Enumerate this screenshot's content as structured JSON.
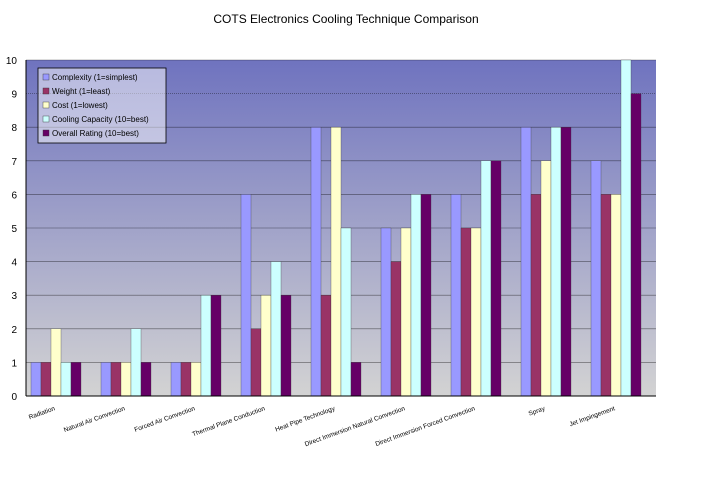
{
  "chart_data": {
    "type": "bar",
    "title": "COTS Electronics Cooling Technique Comparison",
    "xlabel": "",
    "ylabel": "",
    "ylim": [
      0,
      10
    ],
    "yticks": [
      "0",
      "1",
      "2",
      "3",
      "4",
      "5",
      "6",
      "7",
      "8",
      "9",
      "10"
    ],
    "grid": true,
    "legend_position": "top-left",
    "categories": [
      "Radiation",
      "Natural Air Convection",
      "Forced Air Convection",
      "Thermal Plane Conduction",
      "Heat Pipe Technology",
      "Direct Immersion Natural Convection",
      "Direct Immersion Forced Convection",
      "Spray",
      "Jet Impingement"
    ],
    "series": [
      {
        "name": "Complexity (1=simplest)",
        "color": "#9999ff",
        "values": [
          1,
          1,
          1,
          6,
          8,
          5,
          6,
          8,
          7
        ]
      },
      {
        "name": "Weight (1=least)",
        "color": "#993366",
        "values": [
          1,
          1,
          1,
          2,
          3,
          4,
          5,
          6,
          6
        ]
      },
      {
        "name": "Cost (1=lowest)",
        "color": "#ffffcc",
        "values": [
          2,
          1,
          1,
          3,
          8,
          5,
          5,
          7,
          6
        ]
      },
      {
        "name": "Cooling Capacity (10=best)",
        "color": "#ccffff",
        "values": [
          1,
          2,
          3,
          4,
          5,
          6,
          7,
          8,
          10
        ]
      },
      {
        "name": "Overall Rating (10=best)",
        "color": "#660066",
        "values": [
          1,
          1,
          3,
          3,
          1,
          6,
          7,
          8,
          9
        ]
      }
    ],
    "colors": {
      "plot_top": "#6f73bf",
      "plot_bottom": "#d3d3d3",
      "gridline": "#000000"
    }
  }
}
